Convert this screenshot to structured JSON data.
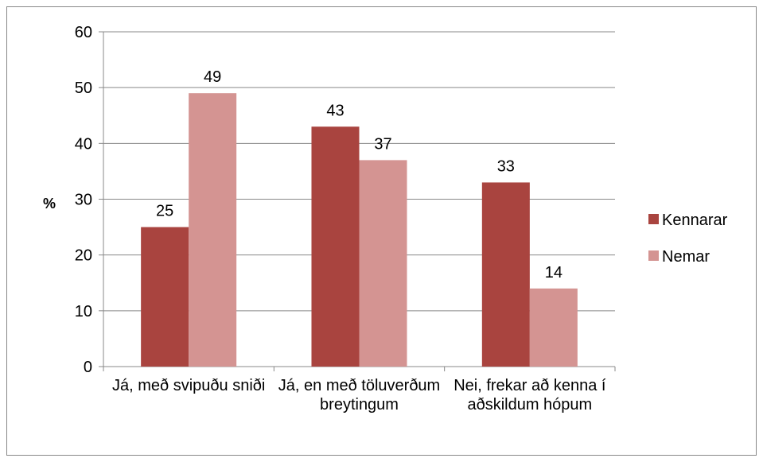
{
  "chart_data": {
    "type": "bar",
    "y_label": "%",
    "categories": [
      "Já, með svipuðu sniði",
      "Já, en með töluverðum breytingum",
      "Nei, frekar að kenna í aðskildum hópum"
    ],
    "series": [
      {
        "name": "Kennarar",
        "color": "#a9443f",
        "values": [
          25,
          43,
          33
        ]
      },
      {
        "name": "Nemar",
        "color": "#d49492",
        "values": [
          49,
          37,
          14
        ]
      }
    ],
    "ylim": [
      0,
      60
    ],
    "yticks": [
      0,
      10,
      20,
      30,
      40,
      50,
      60
    ],
    "grid": true,
    "legend": "right"
  }
}
